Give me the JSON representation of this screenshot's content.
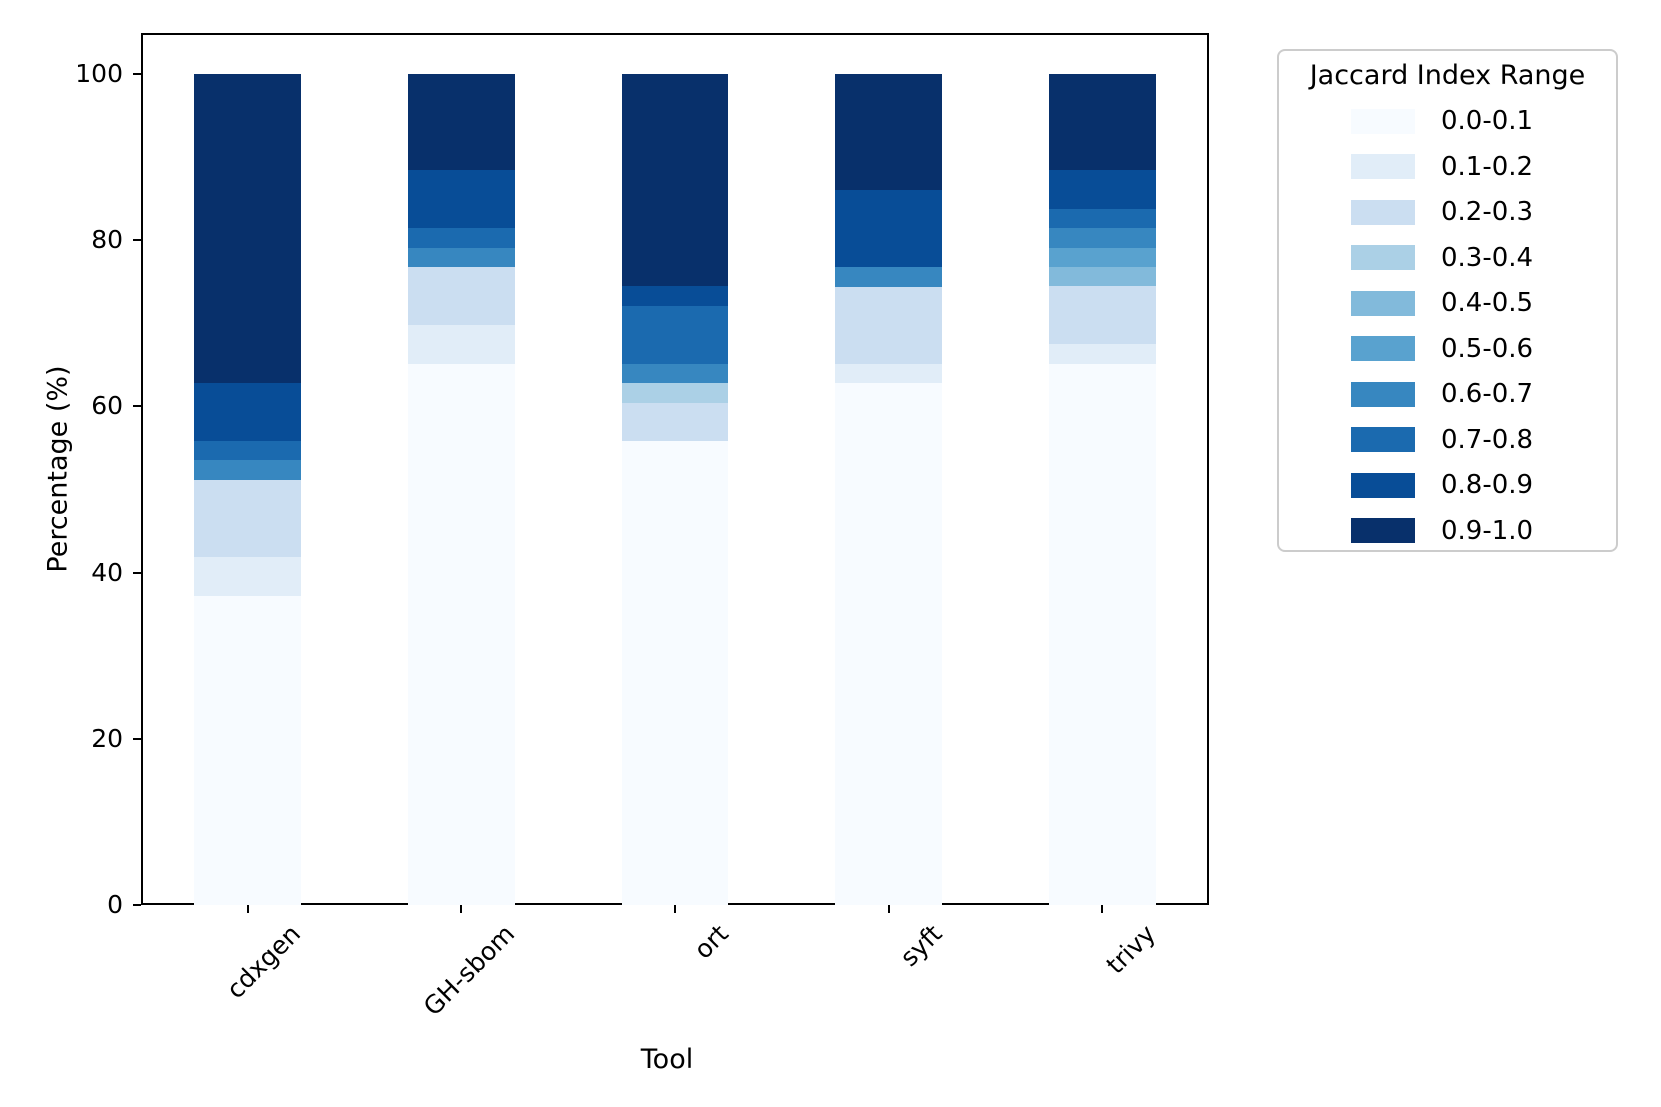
{
  "chart_data": {
    "type": "bar",
    "stacked": true,
    "percentage_normalized": true,
    "title": "",
    "xlabel": "Tool",
    "ylabel": "Percentage (%)",
    "categories": [
      "cdxgen",
      "GH-sbom",
      "ort",
      "syft",
      "trivy"
    ],
    "series": [
      {
        "name": "0.0-0.1",
        "color": "#f7fbff",
        "values": [
          37.21,
          65.12,
          55.81,
          62.79,
          65.12
        ]
      },
      {
        "name": "0.1-0.2",
        "color": "#e1edf8",
        "values": [
          4.65,
          4.65,
          0,
          2.33,
          2.33
        ]
      },
      {
        "name": "0.2-0.3",
        "color": "#cbdef1",
        "values": [
          9.3,
          6.98,
          4.65,
          9.3,
          6.98
        ]
      },
      {
        "name": "0.3-0.4",
        "color": "#abd0e6",
        "values": [
          0,
          0,
          2.33,
          0,
          0
        ]
      },
      {
        "name": "0.4-0.5",
        "color": "#82badb",
        "values": [
          0,
          0,
          0,
          0,
          2.33
        ]
      },
      {
        "name": "0.5-0.6",
        "color": "#59a2cf",
        "values": [
          0,
          0,
          0,
          0,
          2.33
        ]
      },
      {
        "name": "0.6-0.7",
        "color": "#3787c0",
        "values": [
          2.33,
          2.33,
          2.33,
          2.33,
          2.33
        ]
      },
      {
        "name": "0.7-0.8",
        "color": "#1b6aaf",
        "values": [
          2.33,
          2.33,
          6.98,
          0,
          2.33
        ]
      },
      {
        "name": "0.8-0.9",
        "color": "#084d97",
        "values": [
          6.98,
          6.98,
          2.33,
          9.3,
          4.65
        ]
      },
      {
        "name": "0.9-1.0",
        "color": "#08306b",
        "values": [
          37.21,
          11.63,
          25.58,
          13.95,
          11.63
        ]
      }
    ],
    "ylim": [
      0,
      100
    ],
    "yticks": [
      0,
      20,
      40,
      60,
      80,
      100
    ],
    "grid": false,
    "legend_position": "outside-upper-right"
  },
  "legend": {
    "title": "Jaccard Index Range"
  }
}
